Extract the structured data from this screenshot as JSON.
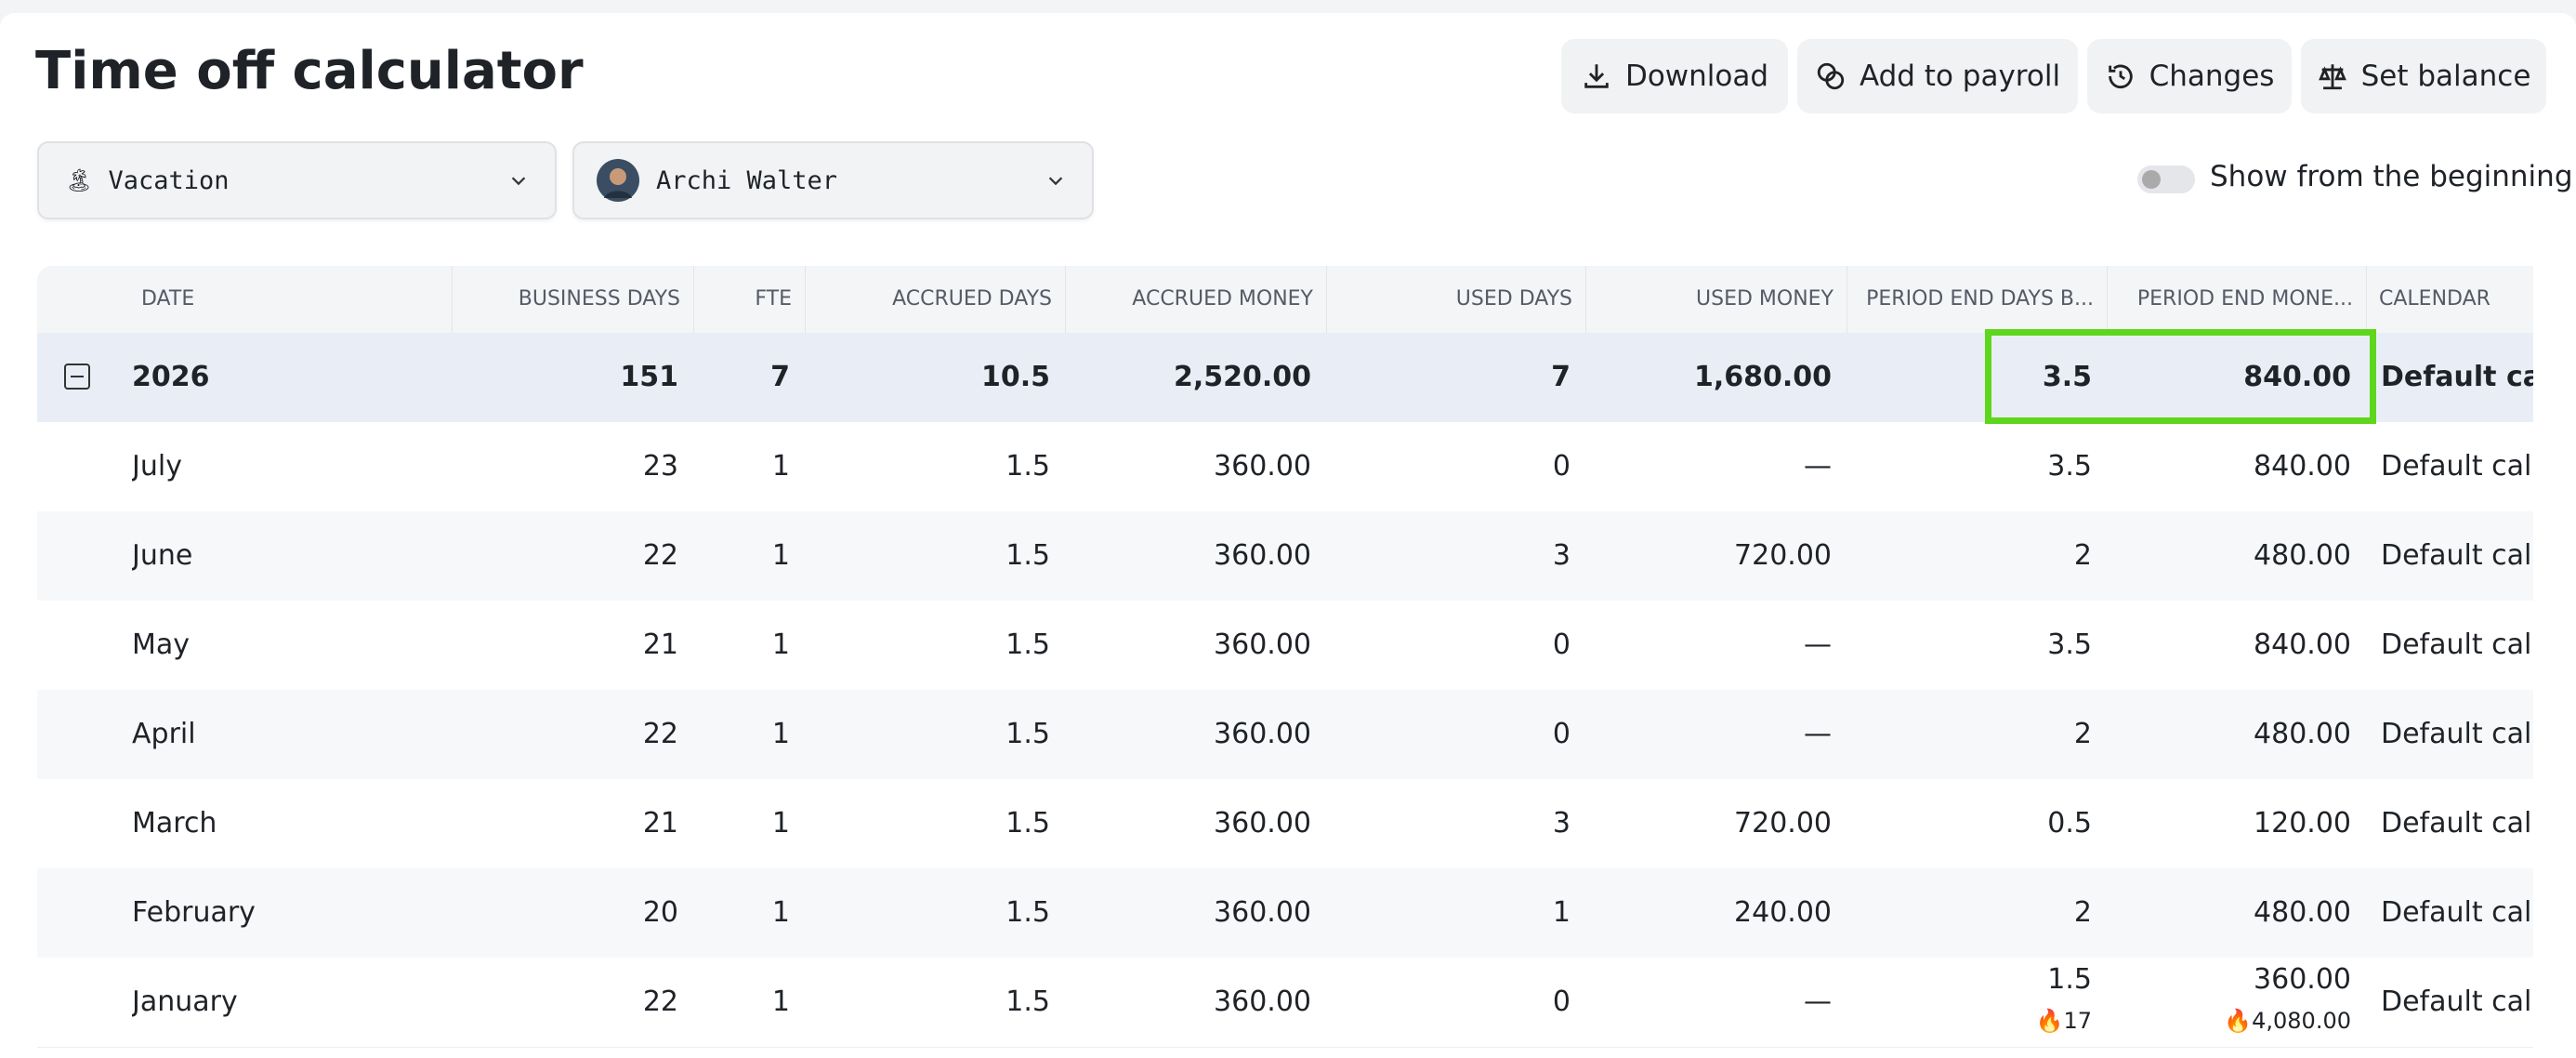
{
  "header": {
    "title": "Time off calculator",
    "buttons": [
      "Download",
      "Add to payroll",
      "Changes",
      "Set balance"
    ]
  },
  "filters": {
    "type": "Vacation",
    "employee": "Archi Walter",
    "toggle_label": "Show from the beginning"
  },
  "table": {
    "columns": [
      "DATE",
      "BUSINESS DAYS",
      "FTE",
      "ACCRUED DAYS",
      "ACCRUED MONEY",
      "USED DAYS",
      "USED MONEY",
      "PERIOD END DAYS B...",
      "PERIOD END MONE...",
      "CALENDAR"
    ],
    "rows": [
      [
        "2026",
        "151",
        "7",
        "10.5",
        "2,520.00",
        "7",
        "1,680.00",
        "3.5",
        "840.00",
        "Default calendar"
      ],
      [
        "July",
        "23",
        "1",
        "1.5",
        "360.00",
        "0",
        "—",
        "3.5",
        "840.00",
        "Default calendar"
      ],
      [
        "June",
        "22",
        "1",
        "1.5",
        "360.00",
        "3",
        "720.00",
        "2",
        "480.00",
        "Default calendar"
      ],
      [
        "May",
        "21",
        "1",
        "1.5",
        "360.00",
        "0",
        "—",
        "3.5",
        "840.00",
        "Default calendar"
      ],
      [
        "April",
        "22",
        "1",
        "1.5",
        "360.00",
        "0",
        "—",
        "2",
        "480.00",
        "Default calendar"
      ],
      [
        "March",
        "21",
        "1",
        "1.5",
        "360.00",
        "3",
        "720.00",
        "0.5",
        "120.00",
        "Default calendar"
      ],
      [
        "February",
        "20",
        "1",
        "1.5",
        "360.00",
        "1",
        "240.00",
        "2",
        "480.00",
        "Default calendar"
      ],
      [
        "January",
        "22",
        "1",
        "1.5",
        "360.00",
        "0",
        "—",
        "1.5",
        "360.00",
        "Default calendar"
      ]
    ],
    "notes": {
      "days": "🔥17",
      "money": "🔥4,080.00"
    }
  }
}
